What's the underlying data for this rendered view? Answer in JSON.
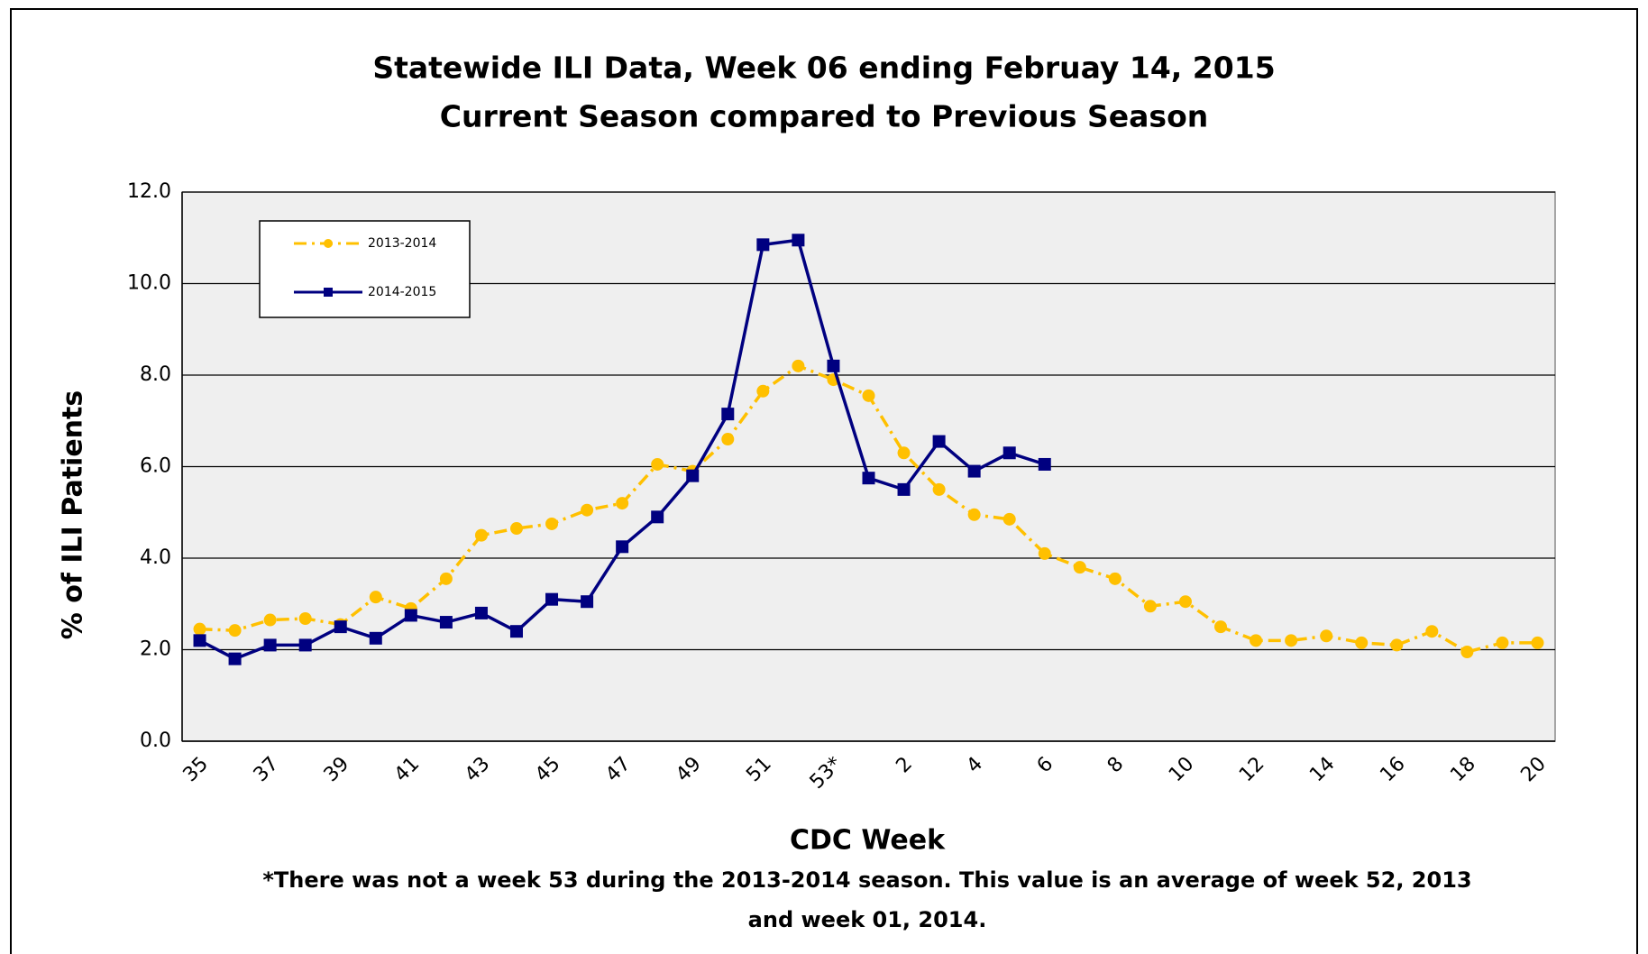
{
  "chart_data": {
    "type": "line",
    "title": [
      "Statewide ILI Data, Week 06 ending Februay 14, 2015",
      "Current Season compared to Previous Season"
    ],
    "xlabel": "CDC Week",
    "ylabel": "% of ILI Patients",
    "footnote": [
      "*There was not a week 53 during the 2013-2014 season. This value is an average of week 52, 2013",
      "and week 01, 2014."
    ],
    "categories": [
      "35",
      null,
      "37",
      null,
      "39",
      null,
      "41",
      null,
      "43",
      null,
      "45",
      null,
      "47",
      null,
      "49",
      null,
      "51",
      null,
      "53*",
      null,
      "2",
      null,
      "4",
      null,
      "6",
      null,
      "8",
      null,
      "10",
      null,
      "12",
      null,
      "14",
      null,
      "16",
      null,
      "18",
      null,
      "20"
    ],
    "series": [
      {
        "name": "2013-2014",
        "color": "#ffc000",
        "values": [
          2.45,
          2.42,
          2.65,
          2.68,
          2.55,
          3.15,
          2.9,
          3.55,
          4.5,
          4.65,
          4.75,
          5.05,
          5.2,
          6.05,
          5.9,
          6.6,
          7.65,
          8.2,
          7.9,
          7.55,
          6.3,
          5.5,
          4.95,
          4.85,
          4.1,
          3.8,
          3.55,
          2.95,
          3.05,
          2.5,
          2.2,
          2.2,
          2.3,
          2.15,
          2.1,
          2.4,
          1.95,
          2.15,
          2.15
        ]
      },
      {
        "name": "2014-2015",
        "color": "#000080",
        "values": [
          2.2,
          1.8,
          2.1,
          2.1,
          2.5,
          2.25,
          2.75,
          2.6,
          2.8,
          2.4,
          3.1,
          3.05,
          4.25,
          4.9,
          5.8,
          7.15,
          10.85,
          10.95,
          8.2,
          5.75,
          5.5,
          6.55,
          5.9,
          6.3,
          6.05,
          null,
          null,
          null,
          null,
          null,
          null,
          null,
          null,
          null,
          null,
          null,
          null,
          null,
          null
        ]
      }
    ],
    "ylim": [
      0,
      12
    ],
    "yticks": [
      {
        "value": 0,
        "label": "0.0"
      },
      {
        "value": 2,
        "label": "2.0"
      },
      {
        "value": 4,
        "label": "4.0"
      },
      {
        "value": 6,
        "label": "6.0"
      },
      {
        "value": 8,
        "label": "8.0"
      },
      {
        "value": 10,
        "label": "10.0"
      },
      {
        "value": 12,
        "label": "12.0"
      }
    ],
    "grid": true,
    "legend": "upper left"
  }
}
